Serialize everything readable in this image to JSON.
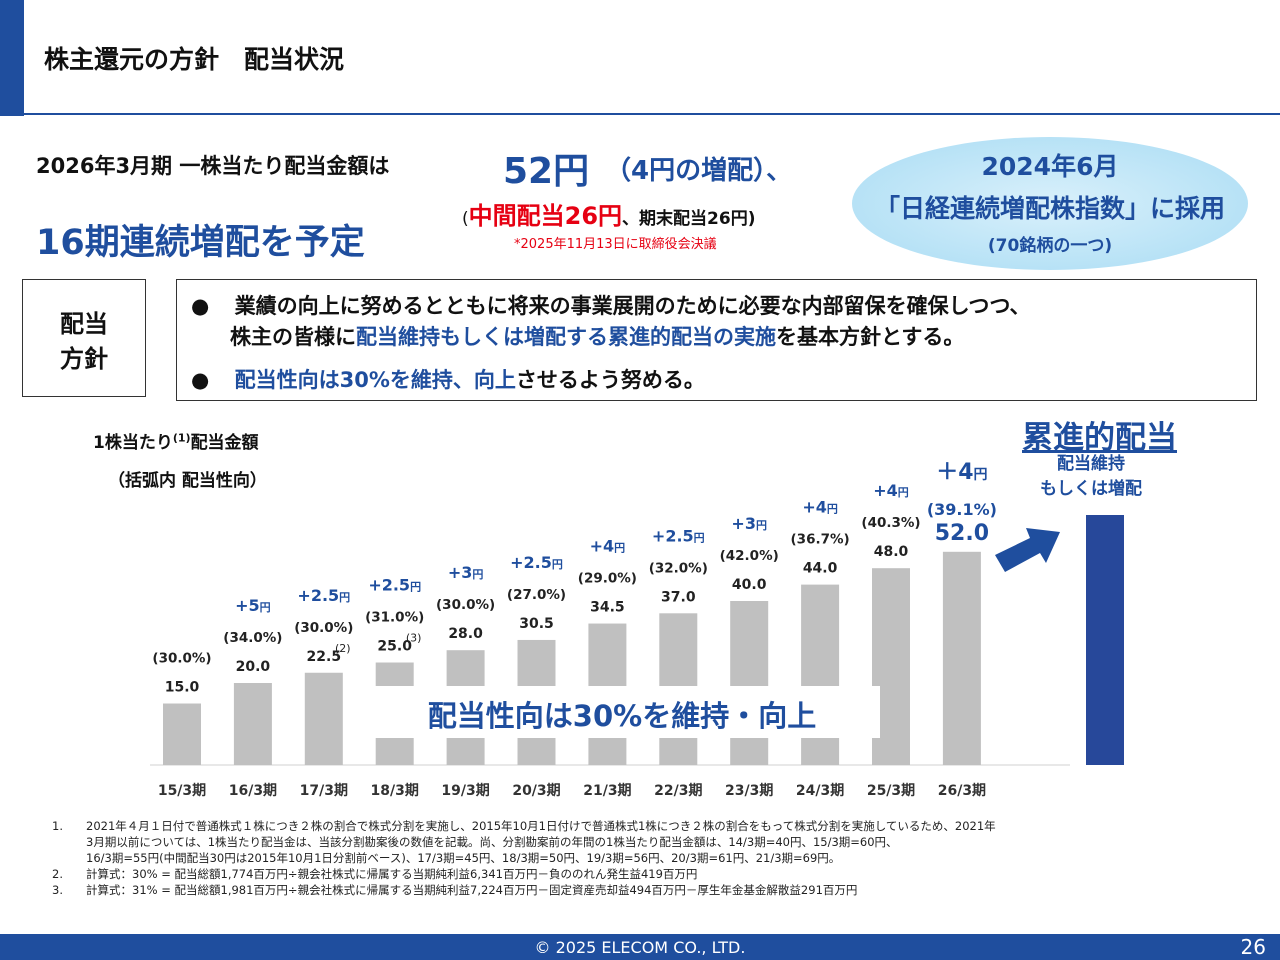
{
  "header": {
    "title": "株主還元の方針　配当状況"
  },
  "headline": {
    "line1": "2026年3月期 一株当たり配当金額は",
    "amount": "52円",
    "increase": "（4円の増配）、",
    "detail_open": "(",
    "detail_interim": "中間配当26円",
    "detail_rest": "、期末配当26円)",
    "note": "*2025年11月13日に取締役会決議",
    "line2": "16期連続増配を予定"
  },
  "nikkei": {
    "line1": "2024年6月",
    "line2": "「日経連続増配株指数」に採用",
    "line3": "(70銘柄の一つ)"
  },
  "policy": {
    "label_line1": "配当",
    "label_line2": "方針",
    "bullet": "●",
    "b1_line1": "業績の向上に努めるとともに将来の事業展開のために必要な内部留保を確保しつつ、",
    "b1_line2_pre": "株主の皆様に",
    "b1_line2_hl": "配当維持もしくは増配する累進的配当の実施",
    "b1_line2_post": "を基本方針とする。",
    "b2_hl": "配当性向は30%を維持、向上",
    "b2_post": "させるよう努める。"
  },
  "chart_title": {
    "main": "1株当たり",
    "sup": "(1)",
    "rest": "配当金額",
    "sub": "（括弧内 配当性向）"
  },
  "overlay_label": "配当性向は30%を維持・向上",
  "progressive": {
    "title": "累進的配当",
    "sub1": "配当維持",
    "sub2": "もしくは増配"
  },
  "chart_data": {
    "type": "bar",
    "categories": [
      "15/3期",
      "16/3期",
      "17/3期",
      "18/3期",
      "19/3期",
      "20/3期",
      "21/3期",
      "22/3期",
      "23/3期",
      "24/3期",
      "25/3期",
      "26/3期"
    ],
    "values": [
      15.0,
      20.0,
      22.5,
      25.0,
      28.0,
      30.5,
      34.5,
      37.0,
      40.0,
      44.0,
      48.0,
      52.0
    ],
    "value_labels": [
      "15.0",
      "20.0",
      "22.5",
      "25.0",
      "28.0",
      "30.5",
      "34.5",
      "37.0",
      "40.0",
      "44.0",
      "48.0",
      "52.0"
    ],
    "payout_labels": [
      "(30.0%)",
      "(34.0%)",
      "(30.0%)",
      "(31.0%)",
      "(30.0%)",
      "(27.0%)",
      "(29.0%)",
      "(32.0%)",
      "(42.0%)",
      "(36.7%)",
      "(40.3%)",
      "(39.1%)"
    ],
    "increase_labels": [
      "",
      "+5",
      "+2.5",
      "+2.5",
      "+3",
      "+2.5",
      "+4",
      "+2.5",
      "+3",
      "+4",
      "+4",
      "＋4"
    ],
    "increase_unit": "円",
    "value_notes": [
      "",
      "",
      "(2)",
      "(3)",
      "",
      "",
      "",
      "",
      "",
      "",
      "",
      ""
    ],
    "ylim": [
      0,
      60
    ],
    "bar_color": "#c0c0c0",
    "highlight_value_color": "#1f4e9e",
    "increase_color": "#1f4e9e"
  },
  "footnotes": [
    {
      "num": "1.",
      "text": "2021年４月１日付で普通株式１株につき２株の割合で株式分割を実施し、2015年10月1日付けで普通株式1株につき２株の割合をもって株式分割を実施しているため、2021年"
    },
    {
      "num": "",
      "text": "3月期以前については、1株当たり配当金は、当該分割勘案後の数値を記載。尚、分割勘案前の年間の1株当たり配当金額は、14/3期=40円、15/3期=60円、"
    },
    {
      "num": "",
      "text": "16/3期=55円(中間配当30円は2015年10月1日分割前ベース)、17/3期=45円、18/3期=50円、19/3期=56円、20/3期=61円、21/3期=69円。"
    },
    {
      "num": "2.",
      "text": "計算式：30% = 配当総額1,774百万円÷親会社株式に帰属する当期純利益6,341百万円－負ののれん発生益419百万円"
    },
    {
      "num": "3.",
      "text": "計算式：31% = 配当総額1,981百万円÷親会社株式に帰属する当期純利益7,224百万円－固定資産売却益494百万円－厚生年金基金解散益291百万円"
    }
  ],
  "footer": {
    "copyright": "© 2025 ELECOM CO., LTD.",
    "page": "26"
  }
}
